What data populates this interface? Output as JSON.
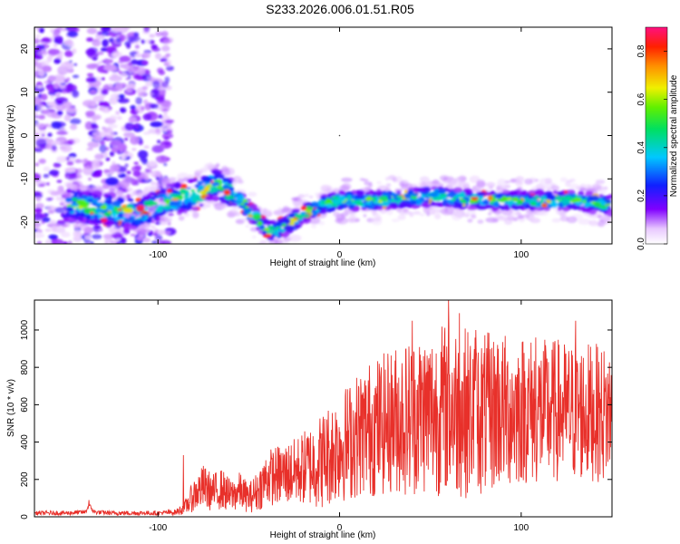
{
  "title": "S233.2026.006.01.51.R05",
  "colors": {
    "snr_line": "#e8302a",
    "axis": "#000000",
    "background": "#ffffff"
  },
  "chart_data": [
    {
      "type": "heatmap",
      "name": "spectrogram",
      "xlabel": "Height of straight line (km)",
      "ylabel": "Frequency (Hz)",
      "xlim": [
        -168,
        150
      ],
      "ylim": [
        -25,
        25
      ],
      "xticks": [
        -100,
        0,
        100
      ],
      "xtick_labels": [
        "-100",
        "0",
        "100"
      ],
      "yticks": [
        -20,
        -10,
        0,
        10,
        20
      ],
      "ytick_labels": [
        "-20",
        "-10",
        "0",
        "10",
        "20"
      ],
      "description_of_values": "normalized spectral amplitude; dense noise for x < -95 km, a single band from x = -95 to 150 km",
      "ridge": {
        "x": [
          -145,
          -130,
          -110,
          -95,
          -85,
          -75,
          -70,
          -65,
          -55,
          -48,
          -42,
          -38,
          -30,
          -20,
          -10,
          0,
          20,
          50,
          80,
          110,
          130,
          150
        ],
        "frequency": [
          -16,
          -17,
          -18,
          -15,
          -14,
          -13,
          -11,
          -12,
          -15,
          -18,
          -21,
          -22,
          -21,
          -18,
          -16,
          -15,
          -15,
          -14,
          -15,
          -15,
          -15,
          -16
        ]
      },
      "colorbar": {
        "label": "Normalized spectral amplitude",
        "range": [
          0.0,
          0.9
        ],
        "ticks": [
          0.0,
          0.2,
          0.4,
          0.6,
          0.8
        ],
        "tick_labels": [
          "0.0",
          "0.2",
          "0.4",
          "0.6",
          "0.8"
        ]
      }
    },
    {
      "type": "line",
      "name": "snr",
      "xlabel": "Height of straight line (km)",
      "ylabel": "SNR (10 * v/v)",
      "xlim": [
        -168,
        150
      ],
      "ylim": [
        0,
        1160
      ],
      "xticks": [
        -100,
        0,
        100
      ],
      "xtick_labels": [
        "-100",
        "0",
        "100"
      ],
      "yticks": [
        0,
        200,
        400,
        600,
        800,
        1000
      ],
      "ytick_labels": [
        "0",
        "200",
        "400",
        "600",
        "800",
        "1000"
      ],
      "series": [
        {
          "name": "SNR",
          "color": "#e8302a",
          "x": [
            -168,
            -160,
            -150,
            -140,
            -138,
            -135,
            -125,
            -110,
            -100,
            -90,
            -85,
            -80,
            -75,
            -70,
            -65,
            -60,
            -55,
            -50,
            -45,
            -40,
            -35,
            -30,
            -25,
            -20,
            -15,
            -10,
            -5,
            0,
            5,
            10,
            15,
            20,
            25,
            30,
            35,
            40,
            45,
            50,
            55,
            60,
            65,
            70,
            75,
            80,
            85,
            90,
            95,
            100,
            105,
            110,
            115,
            120,
            125,
            130,
            135,
            140,
            145,
            150
          ],
          "mean": [
            20,
            20,
            20,
            25,
            60,
            25,
            20,
            20,
            20,
            25,
            50,
            120,
            160,
            130,
            150,
            110,
            140,
            100,
            140,
            210,
            220,
            230,
            240,
            260,
            280,
            300,
            340,
            380,
            400,
            440,
            470,
            480,
            500,
            520,
            530,
            540,
            560,
            560,
            570,
            590,
            570,
            560,
            550,
            550,
            560,
            570,
            560,
            580,
            570,
            560,
            560,
            570,
            560,
            560,
            560,
            560,
            550,
            560
          ],
          "spread": [
            10,
            12,
            12,
            12,
            15,
            12,
            12,
            12,
            12,
            15,
            40,
            90,
            120,
            100,
            110,
            90,
            100,
            80,
            110,
            150,
            160,
            170,
            180,
            200,
            230,
            260,
            280,
            300,
            320,
            340,
            360,
            380,
            380,
            400,
            420,
            430,
            440,
            450,
            460,
            470,
            470,
            460,
            450,
            440,
            430,
            420,
            410,
            410,
            400,
            400,
            390,
            390,
            380,
            380,
            380,
            370,
            370,
            360
          ],
          "peaks": [
            {
              "x": 60,
              "y": 1160
            },
            {
              "x": 66,
              "y": 1090
            },
            {
              "x": 40,
              "y": 1050
            },
            {
              "x": 75,
              "y": 1000
            },
            {
              "x": 130,
              "y": 1050
            },
            {
              "x": 108,
              "y": 960
            },
            {
              "x": 87,
              "y": 920
            },
            {
              "x": -86,
              "y": 330
            },
            {
              "x": -138,
              "y": 90
            }
          ]
        }
      ]
    }
  ]
}
